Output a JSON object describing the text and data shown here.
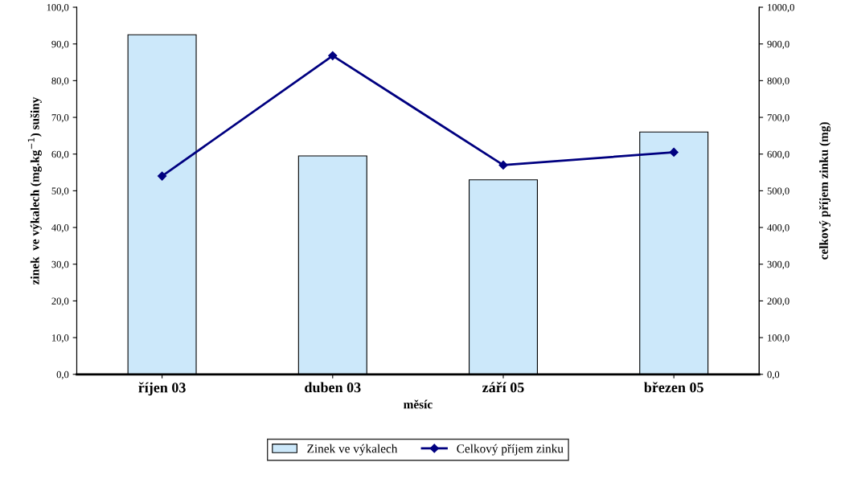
{
  "chart_data": {
    "type": "bar",
    "xlabel": "měsíc",
    "ylabel": "zinek  ve výkalech (mg.kg$^{−1}$) sušiny",
    "y2label": "celkový příjem zinku (mg)",
    "categories": [
      "říjen 03",
      "duben 03",
      "září 05",
      "březen 05"
    ],
    "series": [
      {
        "name": "Zinek ve výkalech",
        "color": "#cce8fa",
        "values": [
          92.5,
          59.5,
          53.0,
          66.0
        ]
      },
      {
        "name": "Celkový příjem zinku",
        "type": "line",
        "axis": "y2",
        "color": "#000080",
        "marker": "diamond",
        "values": [
          540,
          868,
          570,
          605
        ]
      }
    ],
    "ylim": [
      0,
      100
    ],
    "yticks": [
      {
        "value": 0,
        "label": "0,0"
      },
      {
        "value": 10,
        "label": "10,0"
      },
      {
        "value": 20,
        "label": "20,0"
      },
      {
        "value": 30,
        "label": "30,0"
      },
      {
        "value": 40,
        "label": "40,0"
      },
      {
        "value": 50,
        "label": "50,0"
      },
      {
        "value": 60,
        "label": "60,0"
      },
      {
        "value": 70,
        "label": "70,0"
      },
      {
        "value": 80,
        "label": "80,0"
      },
      {
        "value": 90,
        "label": "90,0"
      },
      {
        "value": 100,
        "label": "100,0"
      }
    ],
    "y2lim": [
      0,
      1000
    ],
    "y2ticks": [
      {
        "value": 0,
        "label": "0,0"
      },
      {
        "value": 100,
        "label": "100,0"
      },
      {
        "value": 200,
        "label": "200,0"
      },
      {
        "value": 300,
        "label": "300,0"
      },
      {
        "value": 400,
        "label": "400,0"
      },
      {
        "value": 500,
        "label": "500,0"
      },
      {
        "value": 600,
        "label": "600,0"
      },
      {
        "value": 700,
        "label": "700,0"
      },
      {
        "value": 800,
        "label": "800,0"
      },
      {
        "value": 900,
        "label": "900,0"
      },
      {
        "value": 1000,
        "label": "1000,0"
      }
    ],
    "grid": false,
    "legend": "bottom"
  }
}
